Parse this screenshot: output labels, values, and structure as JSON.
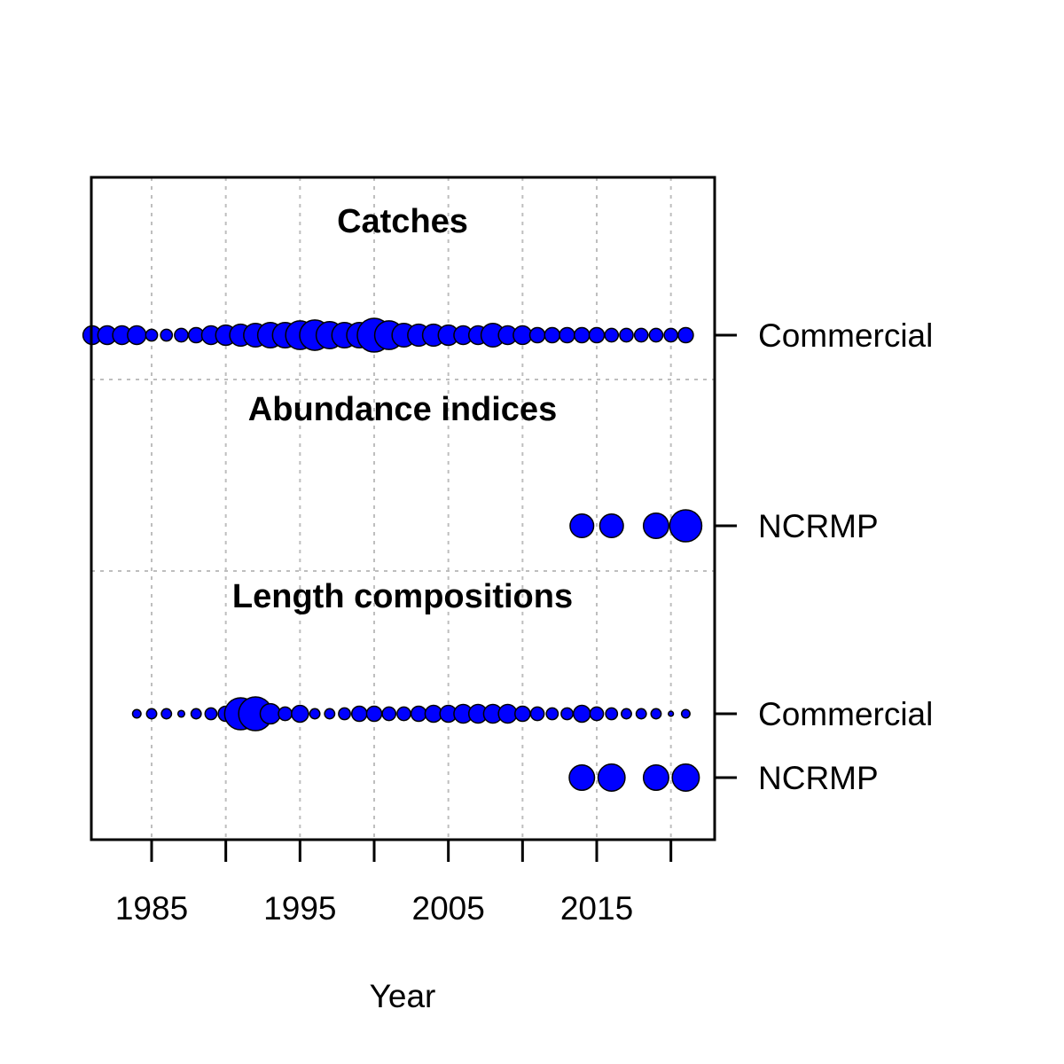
{
  "chart_data": {
    "type": "scatter",
    "xlabel": "Year",
    "x_ticks": [
      1985,
      1995,
      2005,
      2015
    ],
    "x_tick_labels": [
      "1985",
      "1995",
      "2005",
      "2015"
    ],
    "xlim": [
      1979.2,
      2021.3
    ],
    "grid": true,
    "colors": {
      "marker_fill": "#0000FF",
      "marker_edge": "#000000",
      "grid": "#BEBEBE"
    },
    "sections": [
      {
        "title": "Catches",
        "series": [
          {
            "name": "Commercial",
            "years": [
              1981,
              1982,
              1983,
              1984,
              1985,
              1986,
              1987,
              1988,
              1989,
              1990,
              1991,
              1992,
              1993,
              1994,
              1995,
              1996,
              1997,
              1998,
              1999,
              2000,
              2001,
              2002,
              2003,
              2004,
              2005,
              2006,
              2007,
              2008,
              2009,
              2010,
              2011,
              2012,
              2013,
              2014,
              2015,
              2016,
              2017,
              2018,
              2019,
              2020,
              2021
            ],
            "sizes": [
              0.55,
              0.55,
              0.55,
              0.55,
              0.35,
              0.35,
              0.4,
              0.45,
              0.55,
              0.6,
              0.65,
              0.7,
              0.75,
              0.75,
              0.85,
              0.9,
              0.8,
              0.75,
              0.75,
              1.0,
              0.85,
              0.7,
              0.65,
              0.65,
              0.6,
              0.55,
              0.55,
              0.7,
              0.55,
              0.55,
              0.45,
              0.45,
              0.45,
              0.45,
              0.45,
              0.4,
              0.4,
              0.4,
              0.4,
              0.4,
              0.45
            ]
          }
        ]
      },
      {
        "title": "Abundance indices",
        "series": [
          {
            "name": "NCRMP",
            "years": [
              2014,
              2016,
              2019,
              2021
            ],
            "sizes": [
              0.7,
              0.7,
              0.75,
              0.95
            ]
          }
        ]
      },
      {
        "title": "Length compositions",
        "series": [
          {
            "name": "Commercial",
            "years": [
              1984,
              1985,
              1986,
              1987,
              1988,
              1989,
              1990,
              1991,
              1992,
              1993,
              1994,
              1995,
              1996,
              1997,
              1998,
              1999,
              2000,
              2001,
              2002,
              2003,
              2004,
              2005,
              2006,
              2007,
              2008,
              2009,
              2010,
              2011,
              2012,
              2013,
              2014,
              2015,
              2016,
              2017,
              2018,
              2019,
              2020,
              2021
            ],
            "sizes": [
              0.25,
              0.3,
              0.3,
              0.2,
              0.3,
              0.35,
              0.45,
              0.95,
              1.0,
              0.6,
              0.4,
              0.5,
              0.3,
              0.3,
              0.35,
              0.45,
              0.45,
              0.4,
              0.4,
              0.45,
              0.5,
              0.5,
              0.55,
              0.55,
              0.55,
              0.55,
              0.45,
              0.4,
              0.35,
              0.35,
              0.5,
              0.4,
              0.35,
              0.3,
              0.3,
              0.3,
              0.15,
              0.25
            ]
          },
          {
            "name": "NCRMP",
            "years": [
              2014,
              2016,
              2019,
              2021
            ],
            "sizes": [
              0.75,
              0.8,
              0.75,
              0.8
            ]
          }
        ]
      }
    ]
  }
}
